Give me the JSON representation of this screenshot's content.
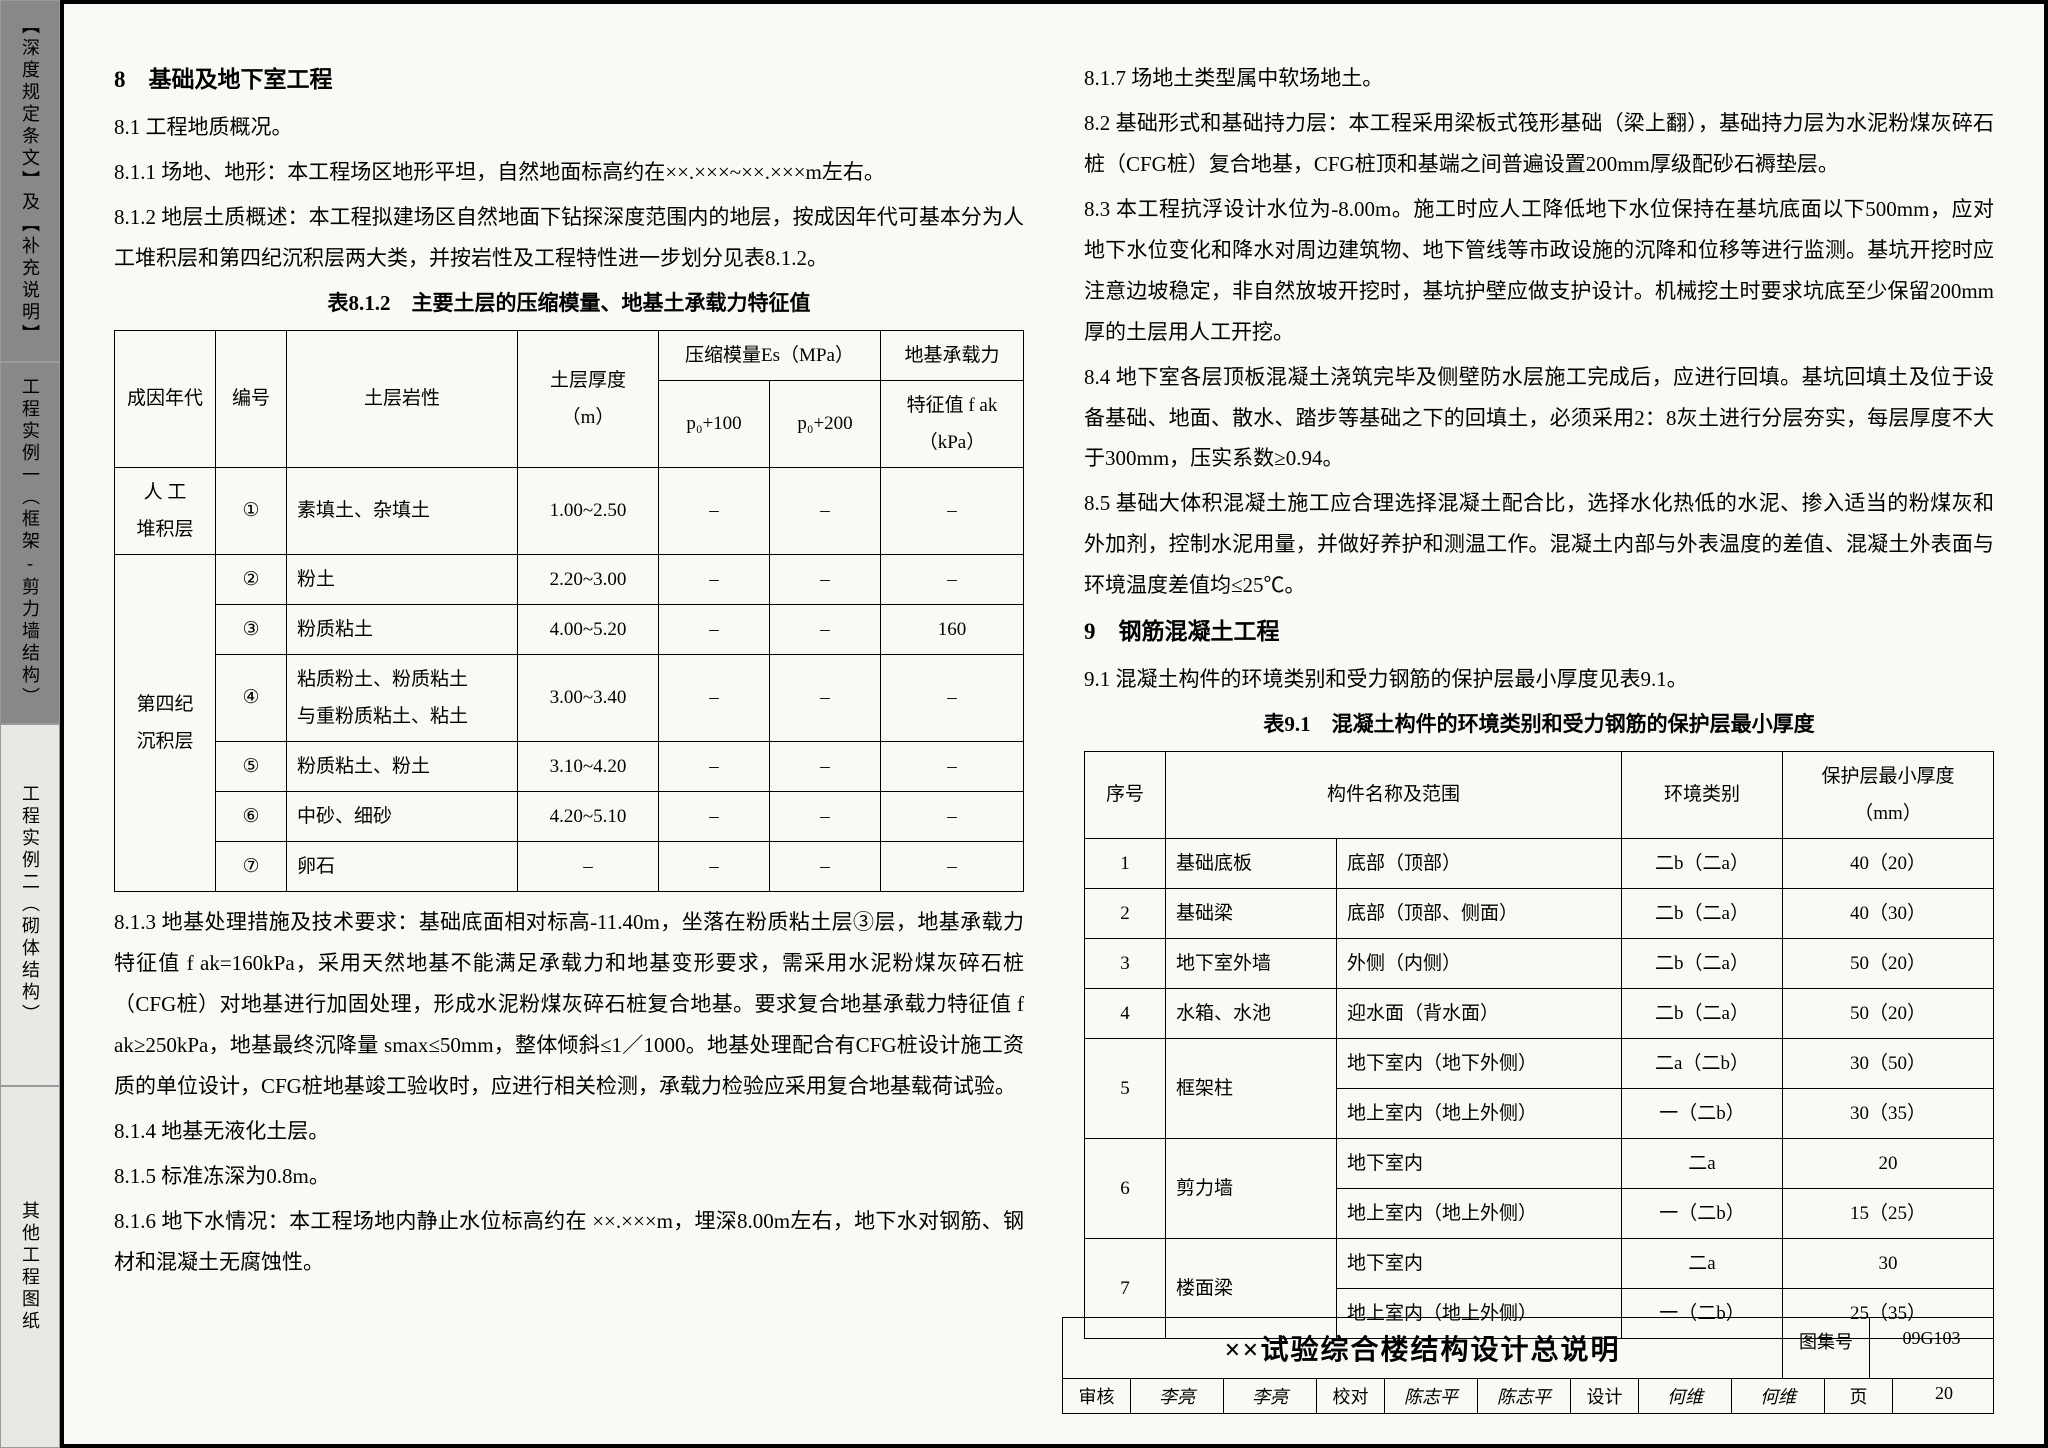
{
  "sidebar": {
    "tabs": [
      "【深度规定条文】及【补充说明】",
      "工程实例一（框架-剪力墙结构）",
      "工程实例二（砌体结构）",
      "其他工程图纸"
    ]
  },
  "left": {
    "h8": "8　基础及地下室工程",
    "p8_1": "8.1 工程地质概况。",
    "p8_1_1": "8.1.1 场地、地形：本工程场区地形平坦，自然地面标高约在××.×××~××.×××m左右。",
    "p8_1_2": "8.1.2 地层土质概述：本工程拟建场区自然地面下钻探深度范围内的地层，按成因年代可基本分为人工堆积层和第四纪沉积层两大类，并按岩性及工程特性进一步划分见表8.1.2。",
    "tbl8_title": "表8.1.2　主要土层的压缩模量、地基土承载力特征值",
    "tbl8": {
      "head": [
        "成因年代",
        "编号",
        "土层岩性",
        "土层厚度\n（m）",
        "压缩模量Es（MPa）",
        "",
        "地基承载力"
      ],
      "sub": [
        "",
        "",
        "",
        "",
        "p₀+100",
        "p₀+200",
        "特征值 f ak（kPa）"
      ],
      "rows": [
        [
          "人 工\n堆积层",
          "①",
          "素填土、杂填土",
          "1.00~2.50",
          "–",
          "–",
          "–"
        ],
        [
          "第四纪\n沉积层",
          "②",
          "粉土",
          "2.20~3.00",
          "–",
          "–",
          "–"
        ],
        [
          "",
          "③",
          "粉质粘土",
          "4.00~5.20",
          "–",
          "–",
          "160"
        ],
        [
          "",
          "④",
          "粘质粉土、粉质粘土\n与重粉质粘土、粘土",
          "3.00~3.40",
          "–",
          "–",
          "–"
        ],
        [
          "",
          "⑤",
          "粉质粘土、粉土",
          "3.10~4.20",
          "–",
          "–",
          "–"
        ],
        [
          "",
          "⑥",
          "中砂、细砂",
          "4.20~5.10",
          "–",
          "–",
          "–"
        ],
        [
          "",
          "⑦",
          "卵石",
          "–",
          "–",
          "–",
          "–"
        ]
      ]
    },
    "p8_1_3": "8.1.3 地基处理措施及技术要求：基础底面相对标高-11.40m，坐落在粉质粘土层③层，地基承载力特征值 f ak=160kPa，采用天然地基不能满足承载力和地基变形要求，需采用水泥粉煤灰碎石桩（CFG桩）对地基进行加固处理，形成水泥粉煤灰碎石桩复合地基。要求复合地基承载力特征值 f ak≥250kPa，地基最终沉降量 smax≤50mm，整体倾斜≤1／1000。地基处理配合有CFG桩设计施工资质的单位设计，CFG桩地基竣工验收时，应进行相关检测，承载力检验应采用复合地基载荷试验。",
    "p8_1_4": "8.1.4 地基无液化土层。",
    "p8_1_5": "8.1.5 标准冻深为0.8m。",
    "p8_1_6": "8.1.6 地下水情况：本工程场地内静止水位标高约在 ××.×××m，埋深8.00m左右，地下水对钢筋、钢材和混凝土无腐蚀性。"
  },
  "right": {
    "p8_1_7": "8.1.7 场地土类型属中软场地土。",
    "p8_2": "8.2 基础形式和基础持力层：本工程采用梁板式筏形基础（梁上翻），基础持力层为水泥粉煤灰碎石桩（CFG桩）复合地基，CFG桩顶和基端之间普遍设置200mm厚级配砂石褥垫层。",
    "p8_3": "8.3 本工程抗浮设计水位为-8.00m。施工时应人工降低地下水位保持在基坑底面以下500mm，应对地下水位变化和降水对周边建筑物、地下管线等市政设施的沉降和位移等进行监测。基坑开挖时应注意边坡稳定，非自然放坡开挖时，基坑护壁应做支护设计。机械挖土时要求坑底至少保留200mm厚的土层用人工开挖。",
    "p8_4": "8.4 地下室各层顶板混凝土浇筑完毕及侧壁防水层施工完成后，应进行回填。基坑回填土及位于设备基础、地面、散水、踏步等基础之下的回填土，必须采用2：8灰土进行分层夯实，每层厚度不大于300mm，压实系数≥0.94。",
    "p8_5": "8.5 基础大体积混凝土施工应合理选择混凝土配合比，选择水化热低的水泥、掺入适当的粉煤灰和外加剂，控制水泥用量，并做好养护和测温工作。混凝土内部与外表温度的差值、混凝土外表面与环境温度差值均≤25℃。",
    "h9": "9　钢筋混凝土工程",
    "p9_1": "9.1 混凝土构件的环境类别和受力钢筋的保护层最小厚度见表9.1。",
    "tbl9_title": "表9.1　混凝土构件的环境类别和受力钢筋的保护层最小厚度",
    "tbl9": {
      "head": [
        "序号",
        "构件名称及范围",
        "",
        "环境类别",
        "保护层最小厚度（mm）"
      ],
      "rows": [
        [
          "1",
          "基础底板",
          "底部（顶部）",
          "二b（二a）",
          "40（20）"
        ],
        [
          "2",
          "基础梁",
          "底部（顶部、侧面）",
          "二b（二a）",
          "40（30）"
        ],
        [
          "3",
          "地下室外墙",
          "外侧（内侧）",
          "二b（二a）",
          "50（20）"
        ],
        [
          "4",
          "水箱、水池",
          "迎水面（背水面）",
          "二b（二a）",
          "50（20）"
        ],
        [
          "5",
          "框架柱",
          "地下室内（地下外侧）",
          "二a（二b）",
          "30（50）"
        ],
        [
          "",
          "",
          "地上室内（地上外侧）",
          "一（二b）",
          "30（35）"
        ],
        [
          "6",
          "剪力墙",
          "地下室内",
          "二a",
          "20"
        ],
        [
          "",
          "",
          "地上室内（地上外侧）",
          "一（二b）",
          "15（25）"
        ],
        [
          "7",
          "楼面梁",
          "地下室内",
          "二a",
          "30"
        ],
        [
          "",
          "",
          "地上室内（地上外侧）",
          "一（二b）",
          "25（35）"
        ]
      ]
    }
  },
  "title_block": {
    "main": "××试验综合楼结构设计总说明",
    "set_lbl": "图集号",
    "set_val": "09G103",
    "row": [
      "审核",
      "李亮",
      "李亮",
      "校对",
      "陈志平",
      "陈志平",
      "设计",
      "何维",
      "何维",
      "页",
      "20"
    ]
  }
}
